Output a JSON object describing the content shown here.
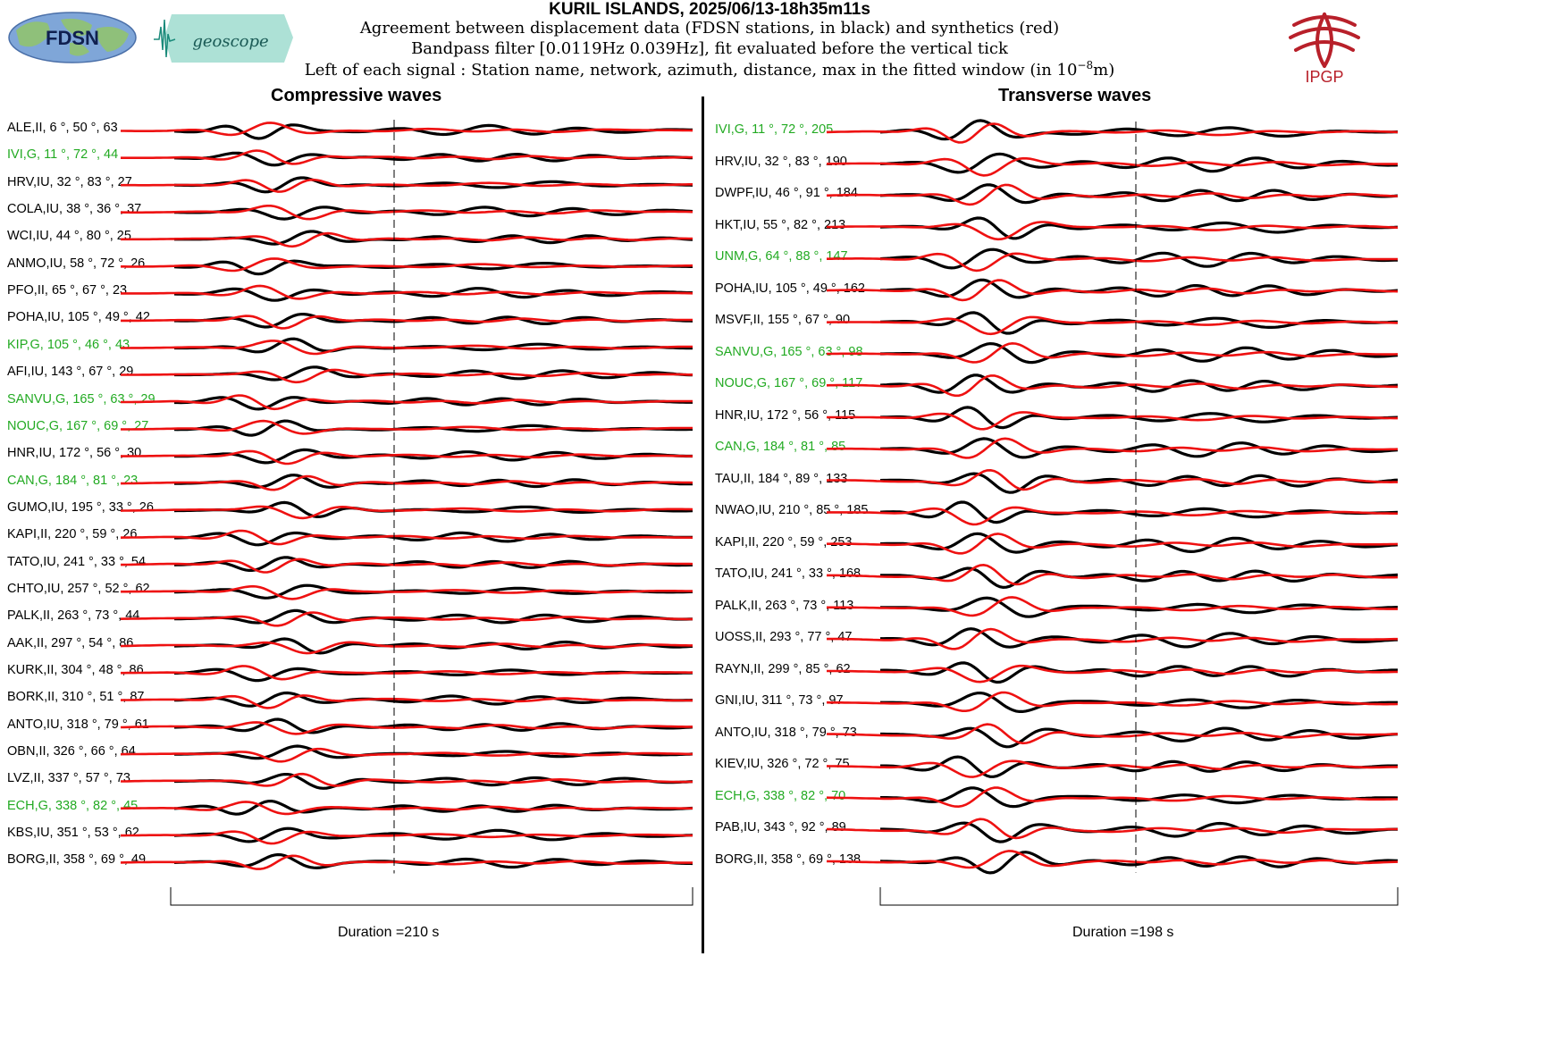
{
  "header": {
    "title": "KURIL ISLANDS, 2025/06/13-18h35m11s",
    "line1": "Agreement between displacement data (FDSN stations, in black) and synthetics (red)",
    "line2": "Bandpass filter [0.0119Hz 0.039Hz], fit evaluated before the vertical tick",
    "line3_prefix": "Left of each signal : Station name, network, azimuth, distance, max in the fitted window (in 10",
    "line3_exp": "−8",
    "line3_suffix": "m)"
  },
  "logos": {
    "fdsn": "FDSN",
    "geoscope": "geoscope",
    "ipgp": "IPGP"
  },
  "colors": {
    "data": "#000000",
    "synthetic": "#ee1111",
    "green_label": "#22aa22",
    "ipgp_red": "#b8202a",
    "fdsn_blue": "#5a86c8",
    "geoscope_teal": "#2aa89a"
  },
  "chart_data": [
    {
      "type": "line",
      "title": "Compressive waves",
      "duration_label": "Duration =210 s",
      "series": [
        {
          "name": "data"
        },
        {
          "name": "synthetics"
        }
      ],
      "stations": [
        {
          "label": "ALE,II, 6 °, 50 °, 63",
          "green": false
        },
        {
          "label": "IVI,G, 11 °, 72 °, 44",
          "green": true
        },
        {
          "label": "HRV,IU, 32 °, 83 °, 27",
          "green": false
        },
        {
          "label": "COLA,IU, 38 °, 36 °, 37",
          "green": false
        },
        {
          "label": "WCI,IU, 44 °, 80 °, 25",
          "green": false
        },
        {
          "label": "ANMO,IU, 58 °, 72 °, 26",
          "green": false
        },
        {
          "label": "PFO,II, 65 °, 67 °, 23",
          "green": false
        },
        {
          "label": "POHA,IU, 105 °, 49 °, 42",
          "green": false
        },
        {
          "label": "KIP,G, 105 °, 46 °, 43",
          "green": true
        },
        {
          "label": "AFI,IU, 143 °, 67 °, 29",
          "green": false
        },
        {
          "label": "SANVU,G, 165 °, 63 °, 29",
          "green": true
        },
        {
          "label": "NOUC,G, 167 °, 69 °, 27",
          "green": true
        },
        {
          "label": "HNR,IU, 172 °, 56 °, 30",
          "green": false
        },
        {
          "label": "CAN,G, 184 °, 81 °, 23",
          "green": true
        },
        {
          "label": "GUMO,IU, 195 °, 33 °, 26",
          "green": false
        },
        {
          "label": "KAPI,II, 220 °, 59 °, 26",
          "green": false
        },
        {
          "label": "TATO,IU, 241 °, 33 °, 54",
          "green": false
        },
        {
          "label": "CHTO,IU, 257 °, 52 °, 62",
          "green": false
        },
        {
          "label": "PALK,II, 263 °, 73 °, 44",
          "green": false
        },
        {
          "label": "AAK,II, 297 °, 54 °, 86",
          "green": false
        },
        {
          "label": "KURK,II, 304 °, 48 °, 86",
          "green": false
        },
        {
          "label": "BORK,II, 310 °, 51 °, 87",
          "green": false
        },
        {
          "label": "ANTO,IU, 318 °, 79 °, 61",
          "green": false
        },
        {
          "label": "OBN,II, 326 °, 66 °, 64",
          "green": false
        },
        {
          "label": "LVZ,II, 337 °, 57 °, 73",
          "green": false
        },
        {
          "label": "ECH,G, 338 °, 82 °, 45",
          "green": true
        },
        {
          "label": "KBS,IU, 351 °, 53 °, 62",
          "green": false
        },
        {
          "label": "BORG,II, 358 °, 69 °, 49",
          "green": false
        }
      ]
    },
    {
      "type": "line",
      "title": "Transverse waves",
      "duration_label": "Duration =198 s",
      "series": [
        {
          "name": "data"
        },
        {
          "name": "synthetics"
        }
      ],
      "stations": [
        {
          "label": "IVI,G, 11 °, 72 °, 205",
          "green": true
        },
        {
          "label": "HRV,IU, 32 °, 83 °, 190",
          "green": false
        },
        {
          "label": "DWPF,IU, 46 °, 91 °, 184",
          "green": false
        },
        {
          "label": "HKT,IU, 55 °, 82 °, 213",
          "green": false
        },
        {
          "label": "UNM,G, 64 °, 88 °, 147",
          "green": true
        },
        {
          "label": "POHA,IU, 105 °, 49 °, 162",
          "green": false
        },
        {
          "label": "MSVF,II, 155 °, 67 °, 90",
          "green": false
        },
        {
          "label": "SANVU,G, 165 °, 63 °, 98",
          "green": true
        },
        {
          "label": "NOUC,G, 167 °, 69 °, 117",
          "green": true
        },
        {
          "label": "HNR,IU, 172 °, 56 °, 115",
          "green": false
        },
        {
          "label": "CAN,G, 184 °, 81 °, 85",
          "green": true
        },
        {
          "label": "TAU,II, 184 °, 89 °, 133",
          "green": false
        },
        {
          "label": "NWAO,IU, 210 °, 85 °, 185",
          "green": false
        },
        {
          "label": "KAPI,II, 220 °, 59 °, 253",
          "green": false
        },
        {
          "label": "TATO,IU, 241 °, 33 °, 168",
          "green": false
        },
        {
          "label": "PALK,II, 263 °, 73 °, 113",
          "green": false
        },
        {
          "label": "UOSS,II, 293 °, 77 °, 47",
          "green": false
        },
        {
          "label": "RAYN,II, 299 °, 85 °, 62",
          "green": false
        },
        {
          "label": "GNI,IU, 311 °, 73 °, 97",
          "green": false
        },
        {
          "label": "ANTO,IU, 318 °, 79 °, 73",
          "green": false
        },
        {
          "label": "KIEV,IU, 326 °, 72 °, 75",
          "green": false
        },
        {
          "label": "ECH,G, 338 °, 82 °, 70",
          "green": true
        },
        {
          "label": "PAB,IU, 343 °, 92 °, 89",
          "green": false
        },
        {
          "label": "BORG,II, 358 °, 69 °, 138",
          "green": false
        }
      ]
    }
  ]
}
